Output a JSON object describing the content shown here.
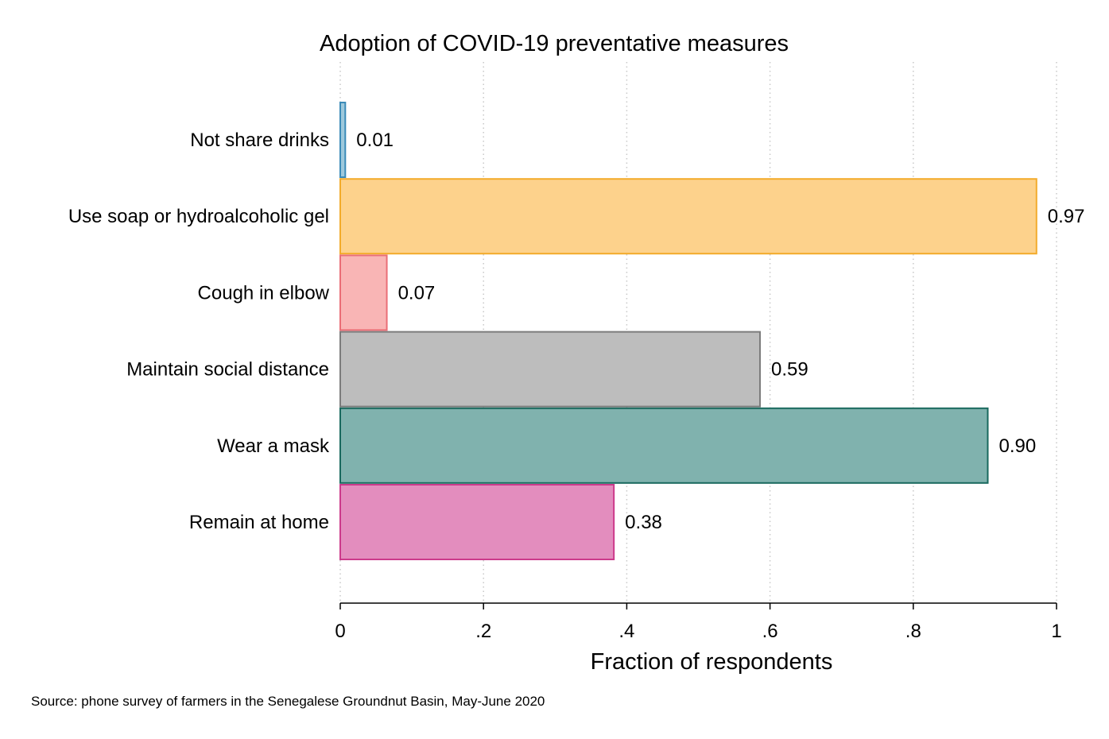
{
  "chart_data": {
    "type": "bar",
    "orientation": "horizontal",
    "title": "Adoption of COVID-19 preventative measures",
    "xlabel": "Fraction of respondents",
    "ylabel": "",
    "xlim": [
      0,
      1
    ],
    "xticks": [
      0,
      0.2,
      0.4,
      0.6,
      0.8,
      1
    ],
    "xtick_labels": [
      "0",
      ".2",
      ".4",
      ".6",
      ".8",
      "1"
    ],
    "grid": "vertical dotted",
    "categories": [
      "Not share drinks",
      "Use soap or hydroalcoholic gel",
      "Cough in elbow",
      "Maintain social distance",
      "Wear a mask",
      "Remain at home"
    ],
    "values": [
      0.007,
      0.972,
      0.065,
      0.586,
      0.904,
      0.382
    ],
    "value_labels": [
      "0.01",
      "0.97",
      "0.07",
      "0.59",
      "0.90",
      "0.38"
    ],
    "fill_colors": [
      "#9ec9dc",
      "#fdd28c",
      "#f9b5b5",
      "#bdbdbd",
      "#80b2ae",
      "#e38dbe"
    ],
    "stroke_colors": [
      "#3b8bb8",
      "#f3ab2b",
      "#ea6e76",
      "#7c7c7c",
      "#19695e",
      "#cc3a8b"
    ],
    "note": "Source: phone survey of farmers in the Senegalese Groundnut Basin, May-June 2020"
  }
}
